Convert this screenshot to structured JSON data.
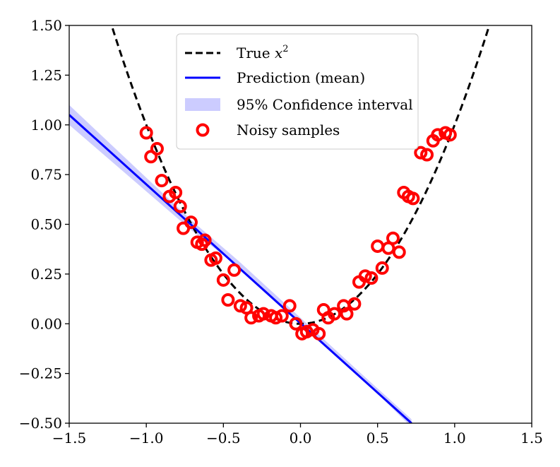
{
  "chart_data": {
    "type": "scatter",
    "title": "",
    "xlabel": "",
    "ylabel": "",
    "xlim": [
      -1.5,
      1.5
    ],
    "ylim": [
      -0.5,
      1.5
    ],
    "grid": false,
    "legend_position": "top-center",
    "x_ticks": [
      -1.5,
      -1.0,
      -0.5,
      0.0,
      0.5,
      1.0,
      1.5
    ],
    "y_ticks": [
      -0.5,
      -0.25,
      0.0,
      0.25,
      0.5,
      0.75,
      1.0,
      1.25,
      1.5
    ],
    "x_tick_labels": [
      "−1.5",
      "−1.0",
      "−0.5",
      "0.0",
      "0.5",
      "1.0",
      "1.5"
    ],
    "y_tick_labels": [
      "−0.50",
      "−0.25",
      "0.00",
      "0.25",
      "0.50",
      "0.75",
      "1.00",
      "1.25",
      "1.50"
    ],
    "series": [
      {
        "name": "True x²",
        "kind": "dashed-line",
        "color": "#000000",
        "function": "x^2",
        "x_range": [
          -1.5,
          1.5
        ]
      },
      {
        "name": "Prediction (mean)",
        "kind": "line",
        "color": "#0000ff",
        "x": [
          -1.5,
          0.72
        ],
        "y": [
          1.05,
          -0.5
        ]
      },
      {
        "name": "95% Confidence interval",
        "kind": "band",
        "color": "#0000ff",
        "opacity": 0.2,
        "x": [
          -1.5,
          -0.7,
          -0.4,
          0.0,
          0.4,
          0.72
        ],
        "upper": [
          1.1,
          0.515,
          0.315,
          0.03,
          -0.255,
          -0.48
        ],
        "lower": [
          1.0,
          0.465,
          0.285,
          0.0,
          -0.275,
          -0.52
        ]
      },
      {
        "name": "Noisy samples",
        "kind": "scatter",
        "color": "#ff0000",
        "x": [
          -1.0,
          -0.97,
          -0.93,
          -0.9,
          -0.85,
          -0.81,
          -0.78,
          -0.76,
          -0.71,
          -0.67,
          -0.64,
          -0.62,
          -0.58,
          -0.55,
          -0.5,
          -0.47,
          -0.43,
          -0.39,
          -0.35,
          -0.32,
          -0.27,
          -0.24,
          -0.19,
          -0.16,
          -0.12,
          -0.07,
          -0.03,
          0.01,
          0.04,
          0.08,
          0.12,
          0.15,
          0.18,
          0.22,
          0.28,
          0.3,
          0.35,
          0.38,
          0.42,
          0.46,
          0.5,
          0.53,
          0.57,
          0.6,
          0.64,
          0.67,
          0.7,
          0.73,
          0.78,
          0.82,
          0.86,
          0.89,
          0.94,
          0.97
        ],
        "y": [
          0.96,
          0.84,
          0.88,
          0.72,
          0.64,
          0.66,
          0.59,
          0.48,
          0.51,
          0.41,
          0.4,
          0.42,
          0.32,
          0.33,
          0.22,
          0.12,
          0.27,
          0.09,
          0.08,
          0.03,
          0.04,
          0.05,
          0.04,
          0.03,
          0.04,
          0.09,
          0.0,
          -0.05,
          -0.04,
          -0.03,
          -0.05,
          0.07,
          0.03,
          0.05,
          0.09,
          0.05,
          0.1,
          0.21,
          0.24,
          0.23,
          0.39,
          0.28,
          0.38,
          0.43,
          0.36,
          0.66,
          0.64,
          0.63,
          0.86,
          0.85,
          0.92,
          0.95,
          0.96,
          0.95
        ]
      }
    ],
    "legend": [
      {
        "label": "True ",
        "label_math": "x",
        "label_sup": "2",
        "kind": "dashed-line",
        "color": "#000000"
      },
      {
        "label": "Prediction (mean)",
        "kind": "line",
        "color": "#0000ff"
      },
      {
        "label": "95% Confidence interval",
        "kind": "band",
        "color": "#0000ff"
      },
      {
        "label": "Noisy samples",
        "kind": "marker",
        "color": "#ff0000"
      }
    ]
  }
}
